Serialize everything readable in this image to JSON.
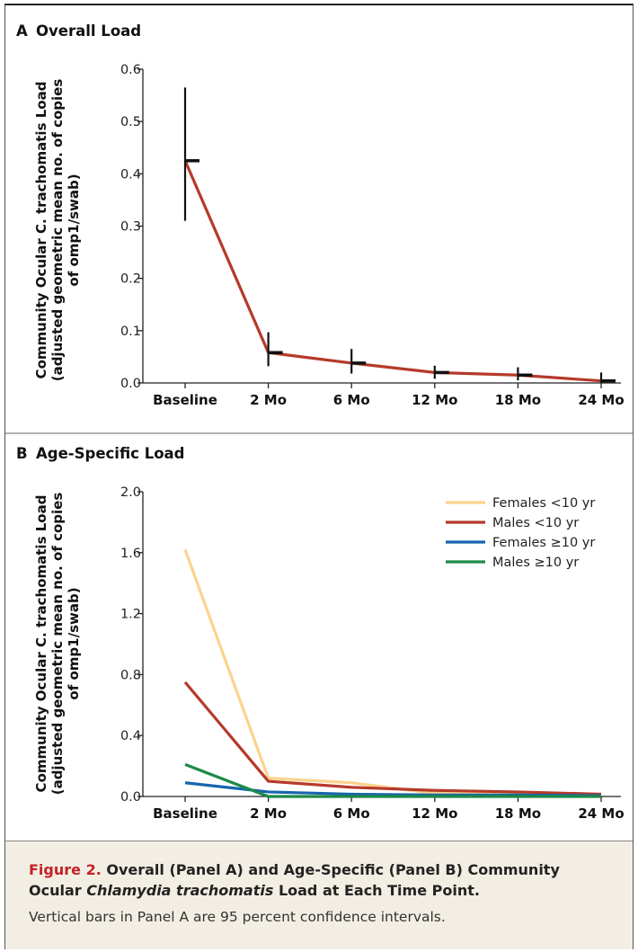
{
  "chart_data": [
    {
      "type": "line",
      "panel_label": "A",
      "title": "Overall Load",
      "ylabel_line1": "Community Ocular C. trachomatis Load",
      "ylabel_line2": "(adjusted geometric mean no. of copies",
      "ylabel_line3": "of omp1/swab)",
      "categories": [
        "Baseline",
        "2 Mo",
        "6 Mo",
        "12 Mo",
        "18 Mo",
        "24 Mo"
      ],
      "yticks": [
        "0.0",
        "0.1",
        "0.2",
        "0.3",
        "0.4",
        "0.5",
        "0.6"
      ],
      "ylim": [
        0,
        0.6
      ],
      "grid": false,
      "series": [
        {
          "values": [
            0.425,
            0.058,
            0.038,
            0.02,
            0.015,
            0.004
          ],
          "ci_low": [
            0.31,
            0.032,
            0.018,
            0.008,
            0.005,
            0.0
          ],
          "ci_high": [
            0.565,
            0.097,
            0.065,
            0.033,
            0.03,
            0.02
          ],
          "color": "#b53a2a"
        }
      ]
    },
    {
      "type": "line",
      "panel_label": "B",
      "title": "Age-Specific Load",
      "ylabel_line1": "Community Ocular C. trachomatis Load",
      "ylabel_line2": "(adjusted geometric mean no. of copies",
      "ylabel_line3": "of omp1/swab)",
      "categories": [
        "Baseline",
        "2 Mo",
        "6 Mo",
        "12 Mo",
        "18 Mo",
        "24 Mo"
      ],
      "yticks": [
        "0.0",
        "0.4",
        "0.8",
        "1.2",
        "1.6",
        "2.0"
      ],
      "ylim": [
        0,
        2.0
      ],
      "grid": false,
      "legend_position": "top-right",
      "series": [
        {
          "name": "Females <10 yr",
          "values": [
            1.62,
            0.12,
            0.09,
            0.02,
            0.02,
            0.01
          ],
          "color": "#fcd38d"
        },
        {
          "name": "Males <10 yr",
          "values": [
            0.75,
            0.1,
            0.06,
            0.04,
            0.03,
            0.015
          ],
          "color": "#b53a2a"
        },
        {
          "name": "Females ≥10 yr",
          "values": [
            0.09,
            0.03,
            0.015,
            0.01,
            0.01,
            0.005
          ],
          "color": "#1566ad"
        },
        {
          "name": "Males ≥10 yr",
          "values": [
            0.21,
            0.0,
            0.0,
            0.0,
            0.0,
            0.0
          ],
          "color": "#1d8a47"
        }
      ]
    }
  ],
  "caption": {
    "label": "Figure 2.",
    "text_1": " Overall (Panel A) and Age-Specific (Panel B) Community Ocular ",
    "text_species": "Chlamydia trachomatis",
    "text_2": " Load at Each Time Point.",
    "note": "Vertical bars in Panel A are 95 percent confidence intervals."
  }
}
